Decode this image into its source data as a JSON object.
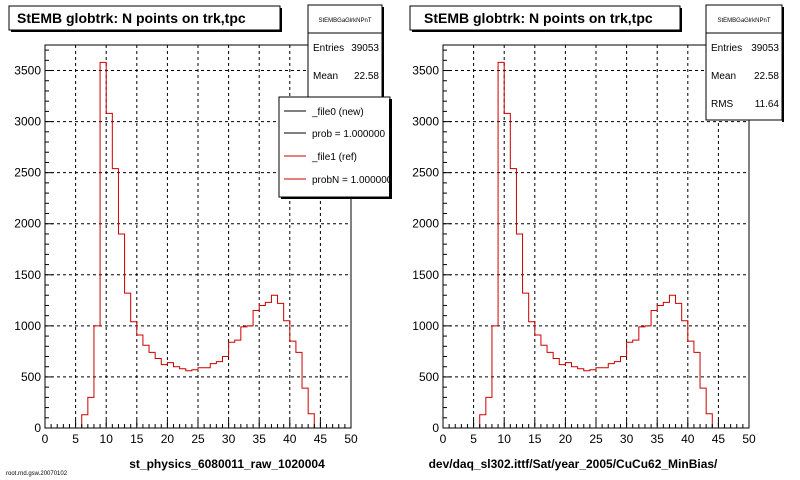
{
  "chart_data": [
    {
      "type": "line",
      "title": "StEMB globtrk: N points on trk,tpc",
      "xlabel": "st_physics_6080011_raw_1020004",
      "stats": {
        "name": "StEMBGaGlrkNPnT",
        "entries_label": "Entries",
        "entries": "39053",
        "mean_label": "Mean",
        "mean": "22.58"
      },
      "legend": {
        "placement": "top-right",
        "entries": [
          {
            "label": "_file0 (new)",
            "color": "#000000"
          },
          {
            "label": "prob = 1.000000",
            "color": "#000000"
          },
          {
            "label": "_file1 (ref)",
            "color": "#cc0000"
          },
          {
            "label": "probN = 1.000000",
            "color": "#cc0000"
          }
        ]
      },
      "xlim": [
        0,
        50
      ],
      "ylim": [
        0,
        3750
      ],
      "xticks": [
        0,
        5,
        10,
        15,
        20,
        25,
        30,
        35,
        40,
        45,
        50
      ],
      "yticks": [
        0,
        500,
        1000,
        1500,
        2000,
        2500,
        3000,
        3500
      ],
      "grid": true,
      "series": [
        {
          "color": "#cc0000",
          "bin_width": 1,
          "x": [
            0,
            1,
            2,
            3,
            4,
            5,
            6,
            7,
            8,
            9,
            10,
            11,
            12,
            13,
            14,
            15,
            16,
            17,
            18,
            19,
            20,
            21,
            22,
            23,
            24,
            25,
            26,
            27,
            28,
            29,
            30,
            31,
            32,
            33,
            34,
            35,
            36,
            37,
            38,
            39,
            40,
            41,
            42,
            43,
            44,
            45,
            46,
            47,
            48,
            49
          ],
          "values": [
            0,
            0,
            0,
            0,
            0,
            0,
            130,
            300,
            1000,
            3580,
            3080,
            2540,
            1900,
            1320,
            1040,
            910,
            810,
            740,
            680,
            620,
            640,
            600,
            580,
            560,
            570,
            590,
            590,
            630,
            650,
            700,
            840,
            860,
            990,
            1000,
            1150,
            1200,
            1230,
            1300,
            1220,
            1050,
            850,
            740,
            390,
            140,
            0,
            0,
            0,
            0,
            0,
            0
          ]
        }
      ]
    },
    {
      "type": "line",
      "title": "StEMB globtrk: N points on trk,tpc",
      "xlabel": "dev/daq_sl302.ittf/Sat/year_2005/CuCu62_MinBias/",
      "stats": {
        "name": "StEMBGaGlrkNPnT",
        "entries_label": "Entries",
        "entries": "39053",
        "mean_label": "Mean",
        "mean": "22.58",
        "rms_label": "RMS",
        "rms": "11.64"
      },
      "xlim": [
        0,
        50
      ],
      "ylim": [
        0,
        3750
      ],
      "xticks": [
        0,
        5,
        10,
        15,
        20,
        25,
        30,
        35,
        40,
        45,
        50
      ],
      "yticks": [
        0,
        500,
        1000,
        1500,
        2000,
        2500,
        3000,
        3500
      ],
      "grid": true,
      "series": [
        {
          "color": "#cc0000",
          "bin_width": 1,
          "x": [
            0,
            1,
            2,
            3,
            4,
            5,
            6,
            7,
            8,
            9,
            10,
            11,
            12,
            13,
            14,
            15,
            16,
            17,
            18,
            19,
            20,
            21,
            22,
            23,
            24,
            25,
            26,
            27,
            28,
            29,
            30,
            31,
            32,
            33,
            34,
            35,
            36,
            37,
            38,
            39,
            40,
            41,
            42,
            43,
            44,
            45,
            46,
            47,
            48,
            49
          ],
          "values": [
            0,
            0,
            0,
            0,
            0,
            0,
            130,
            300,
            1000,
            3580,
            3080,
            2540,
            1900,
            1320,
            1040,
            910,
            810,
            740,
            680,
            620,
            640,
            600,
            580,
            560,
            570,
            590,
            590,
            630,
            650,
            700,
            840,
            860,
            990,
            1000,
            1150,
            1200,
            1230,
            1300,
            1220,
            1050,
            850,
            740,
            390,
            140,
            0,
            0,
            0,
            0,
            0,
            0
          ]
        }
      ]
    }
  ],
  "footer_text": "root.rnd.gsw.20070102"
}
